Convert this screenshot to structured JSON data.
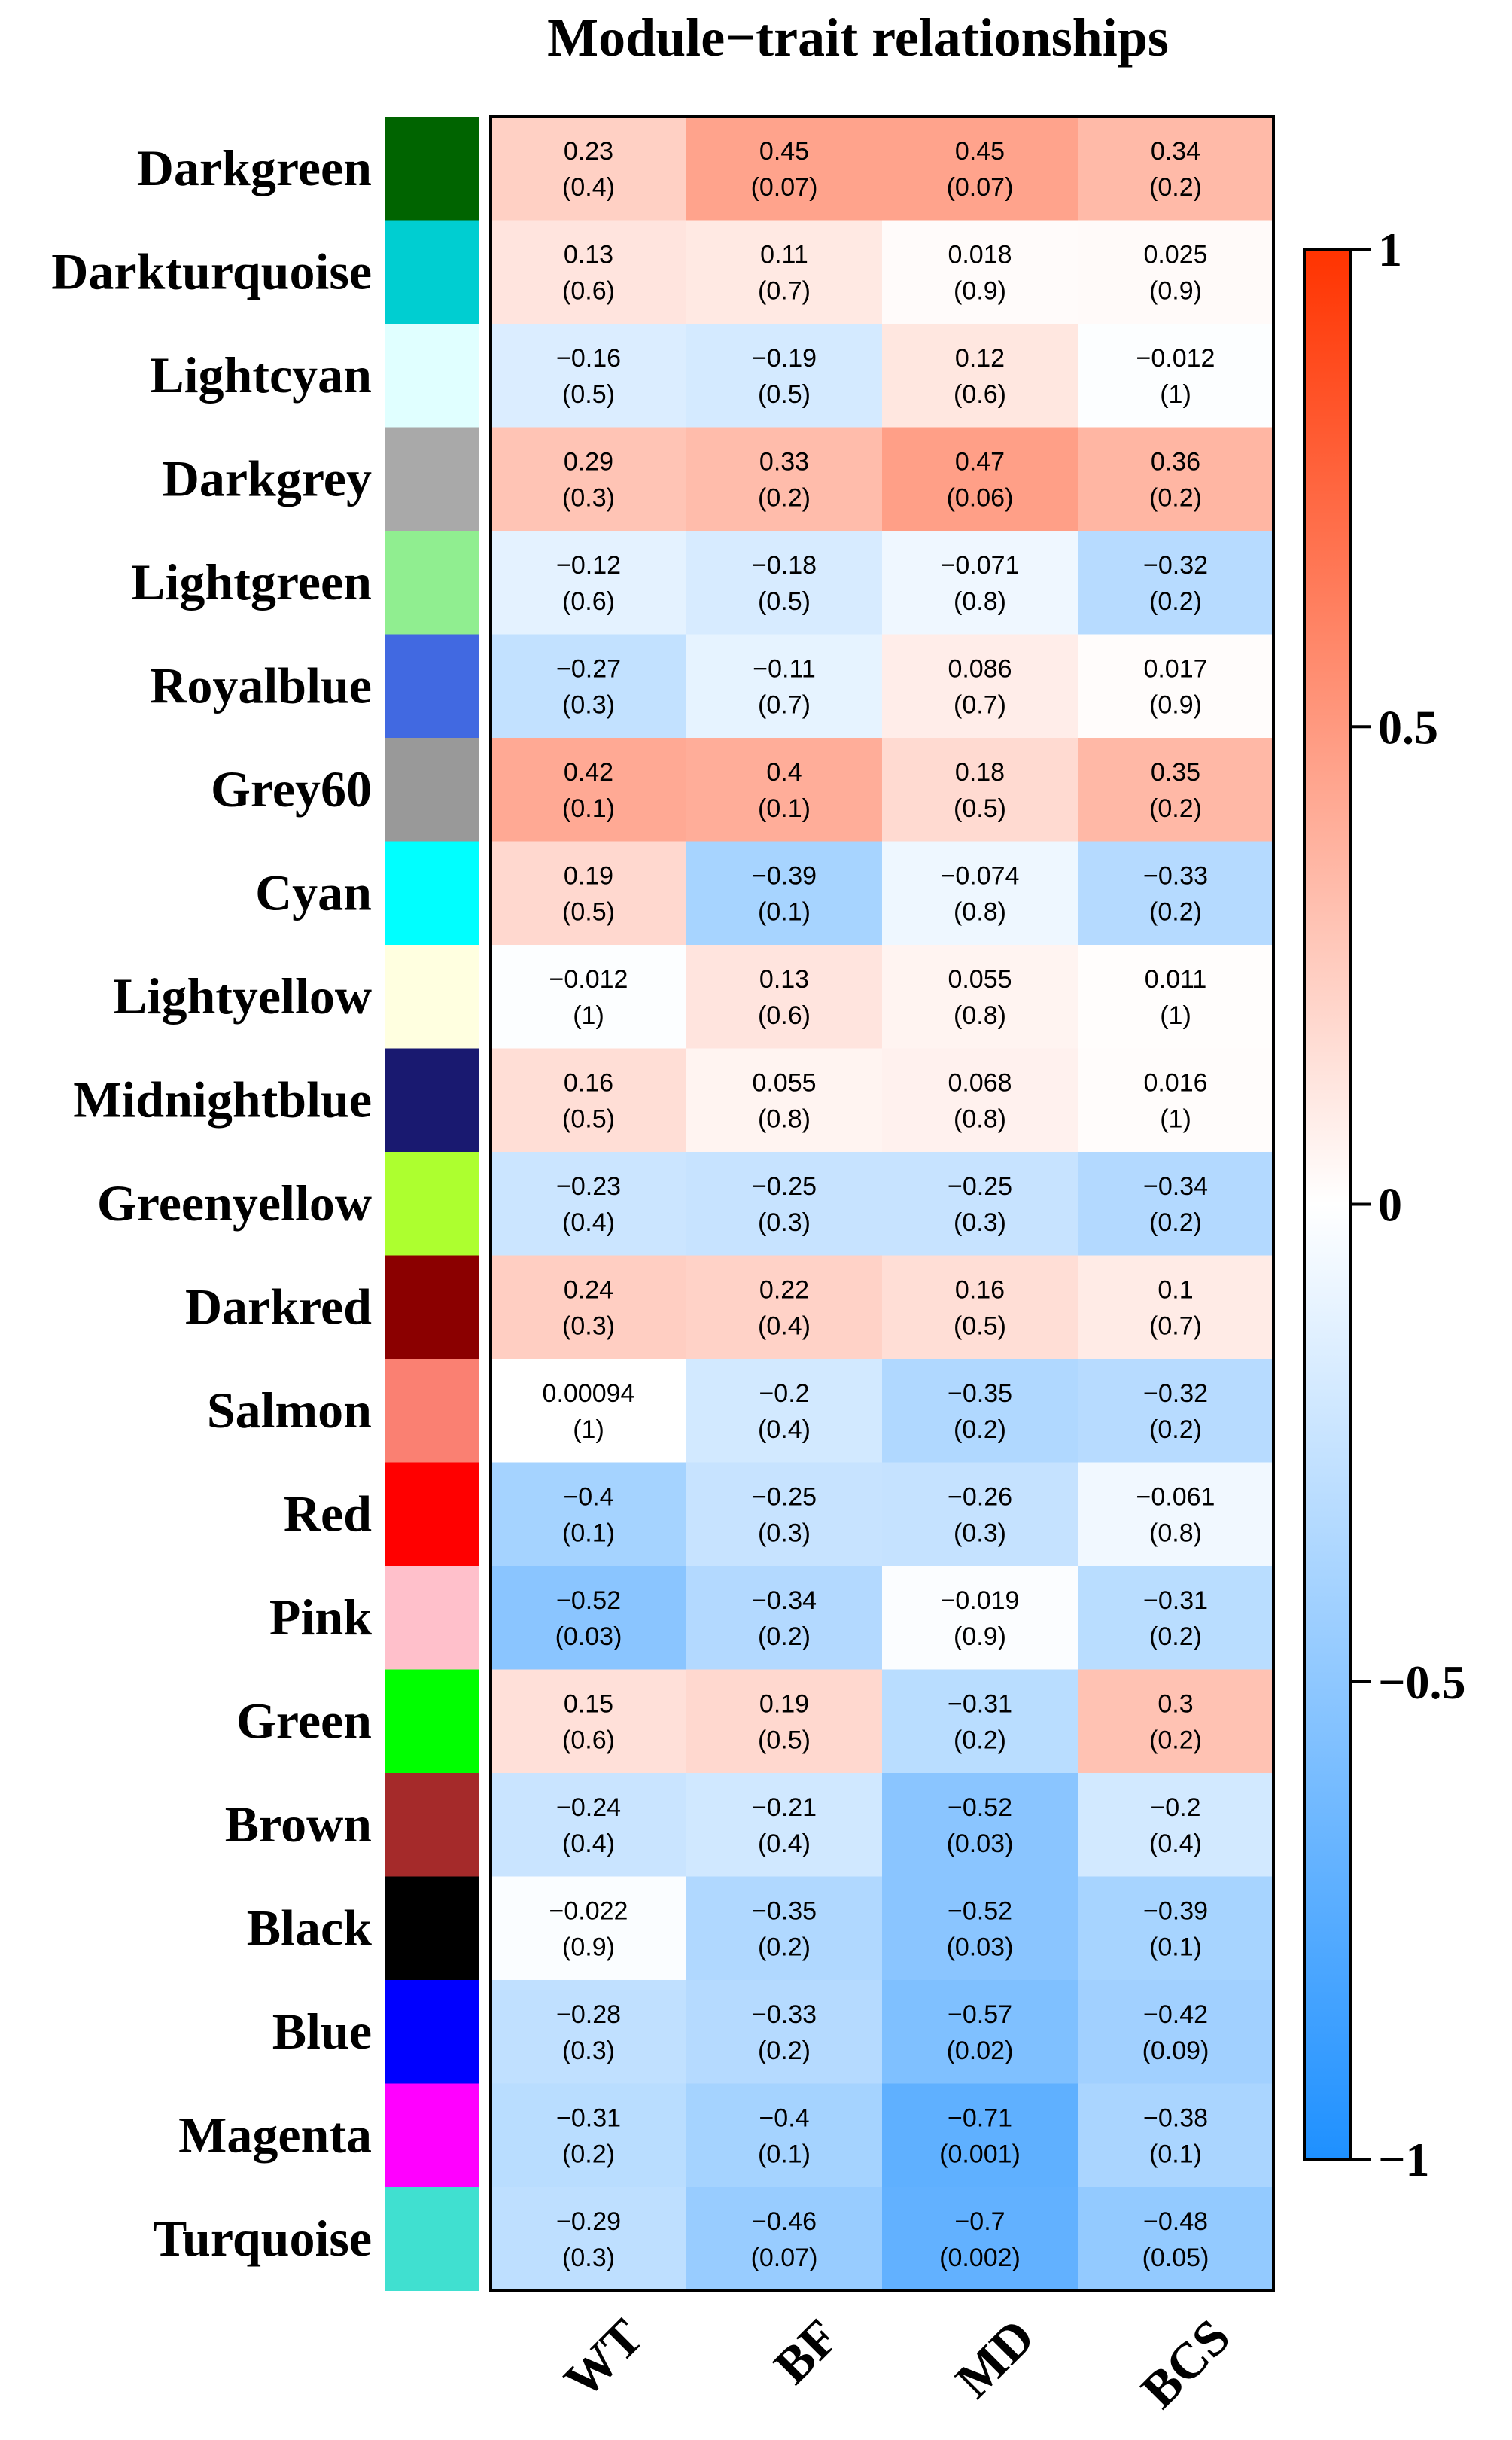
{
  "chart_data": {
    "type": "heatmap",
    "title": "Module−trait relationships",
    "columns": [
      "WT",
      "BF",
      "MD",
      "BCS"
    ],
    "rows": [
      {
        "name": "Darkgreen",
        "color": "#006400",
        "values": [
          "0.23",
          "0.45",
          "0.45",
          "0.34"
        ],
        "pvalues": [
          "(0.4)",
          "(0.07)",
          "(0.07)",
          "(0.2)"
        ]
      },
      {
        "name": "Darkturquoise",
        "color": "#00CED1",
        "values": [
          "0.13",
          "0.11",
          "0.018",
          "0.025"
        ],
        "pvalues": [
          "(0.6)",
          "(0.7)",
          "(0.9)",
          "(0.9)"
        ]
      },
      {
        "name": "Lightcyan",
        "color": "#E0FFFF",
        "values": [
          "−0.16",
          "−0.19",
          "0.12",
          "−0.012"
        ],
        "pvalues": [
          "(0.5)",
          "(0.5)",
          "(0.6)",
          "(1)"
        ]
      },
      {
        "name": "Darkgrey",
        "color": "#A9A9A9",
        "values": [
          "0.29",
          "0.33",
          "0.47",
          "0.36"
        ],
        "pvalues": [
          "(0.3)",
          "(0.2)",
          "(0.06)",
          "(0.2)"
        ]
      },
      {
        "name": "Lightgreen",
        "color": "#90EE90",
        "values": [
          "−0.12",
          "−0.18",
          "−0.071",
          "−0.32"
        ],
        "pvalues": [
          "(0.6)",
          "(0.5)",
          "(0.8)",
          "(0.2)"
        ]
      },
      {
        "name": "Royalblue",
        "color": "#4169E1",
        "values": [
          "−0.27",
          "−0.11",
          "0.086",
          "0.017"
        ],
        "pvalues": [
          "(0.3)",
          "(0.7)",
          "(0.7)",
          "(0.9)"
        ]
      },
      {
        "name": "Grey60",
        "color": "#999999",
        "values": [
          "0.42",
          "0.4",
          "0.18",
          "0.35"
        ],
        "pvalues": [
          "(0.1)",
          "(0.1)",
          "(0.5)",
          "(0.2)"
        ]
      },
      {
        "name": "Cyan",
        "color": "#00FFFF",
        "values": [
          "0.19",
          "−0.39",
          "−0.074",
          "−0.33"
        ],
        "pvalues": [
          "(0.5)",
          "(0.1)",
          "(0.8)",
          "(0.2)"
        ]
      },
      {
        "name": "Lightyellow",
        "color": "#FFFFE0",
        "values": [
          "−0.012",
          "0.13",
          "0.055",
          "0.011"
        ],
        "pvalues": [
          "(1)",
          "(0.6)",
          "(0.8)",
          "(1)"
        ]
      },
      {
        "name": "Midnightblue",
        "color": "#191970",
        "values": [
          "0.16",
          "0.055",
          "0.068",
          "0.016"
        ],
        "pvalues": [
          "(0.5)",
          "(0.8)",
          "(0.8)",
          "(1)"
        ]
      },
      {
        "name": "Greenyellow",
        "color": "#ADFF2F",
        "values": [
          "−0.23",
          "−0.25",
          "−0.25",
          "−0.34"
        ],
        "pvalues": [
          "(0.4)",
          "(0.3)",
          "(0.3)",
          "(0.2)"
        ]
      },
      {
        "name": "Darkred",
        "color": "#8B0000",
        "values": [
          "0.24",
          "0.22",
          "0.16",
          "0.1"
        ],
        "pvalues": [
          "(0.3)",
          "(0.4)",
          "(0.5)",
          "(0.7)"
        ]
      },
      {
        "name": "Salmon",
        "color": "#FA8072",
        "values": [
          "0.00094",
          "−0.2",
          "−0.35",
          "−0.32"
        ],
        "pvalues": [
          "(1)",
          "(0.4)",
          "(0.2)",
          "(0.2)"
        ]
      },
      {
        "name": "Red",
        "color": "#FF0000",
        "values": [
          "−0.4",
          "−0.25",
          "−0.26",
          "−0.061"
        ],
        "pvalues": [
          "(0.1)",
          "(0.3)",
          "(0.3)",
          "(0.8)"
        ]
      },
      {
        "name": "Pink",
        "color": "#FFC0CB",
        "values": [
          "−0.52",
          "−0.34",
          "−0.019",
          "−0.31"
        ],
        "pvalues": [
          "(0.03)",
          "(0.2)",
          "(0.9)",
          "(0.2)"
        ]
      },
      {
        "name": "Green",
        "color": "#00FF00",
        "values": [
          "0.15",
          "0.19",
          "−0.31",
          "0.3"
        ],
        "pvalues": [
          "(0.6)",
          "(0.5)",
          "(0.2)",
          "(0.2)"
        ]
      },
      {
        "name": "Brown",
        "color": "#A52A2A",
        "values": [
          "−0.24",
          "−0.21",
          "−0.52",
          "−0.2"
        ],
        "pvalues": [
          "(0.4)",
          "(0.4)",
          "(0.03)",
          "(0.4)"
        ]
      },
      {
        "name": "Black",
        "color": "#000000",
        "values": [
          "−0.022",
          "−0.35",
          "−0.52",
          "−0.39"
        ],
        "pvalues": [
          "(0.9)",
          "(0.2)",
          "(0.03)",
          "(0.1)"
        ]
      },
      {
        "name": "Blue",
        "color": "#0000FF",
        "values": [
          "−0.28",
          "−0.33",
          "−0.57",
          "−0.42"
        ],
        "pvalues": [
          "(0.3)",
          "(0.2)",
          "(0.02)",
          "(0.09)"
        ]
      },
      {
        "name": "Magenta",
        "color": "#FF00FF",
        "values": [
          "−0.31",
          "−0.4",
          "−0.71",
          "−0.38"
        ],
        "pvalues": [
          "(0.2)",
          "(0.1)",
          "(0.001)",
          "(0.1)"
        ]
      },
      {
        "name": "Turquoise",
        "color": "#40E0D0",
        "values": [
          "−0.29",
          "−0.46",
          "−0.7",
          "−0.48"
        ],
        "pvalues": [
          "(0.3)",
          "(0.07)",
          "(0.002)",
          "(0.05)"
        ]
      }
    ],
    "colorbar": {
      "ticks": [
        "1",
        "0.5",
        "0",
        "−0.5",
        "−1"
      ],
      "range": [
        -1,
        1
      ],
      "colors": {
        "low": "#1E90FF",
        "mid": "#FFFFFF",
        "high": "#FF3300"
      }
    }
  }
}
